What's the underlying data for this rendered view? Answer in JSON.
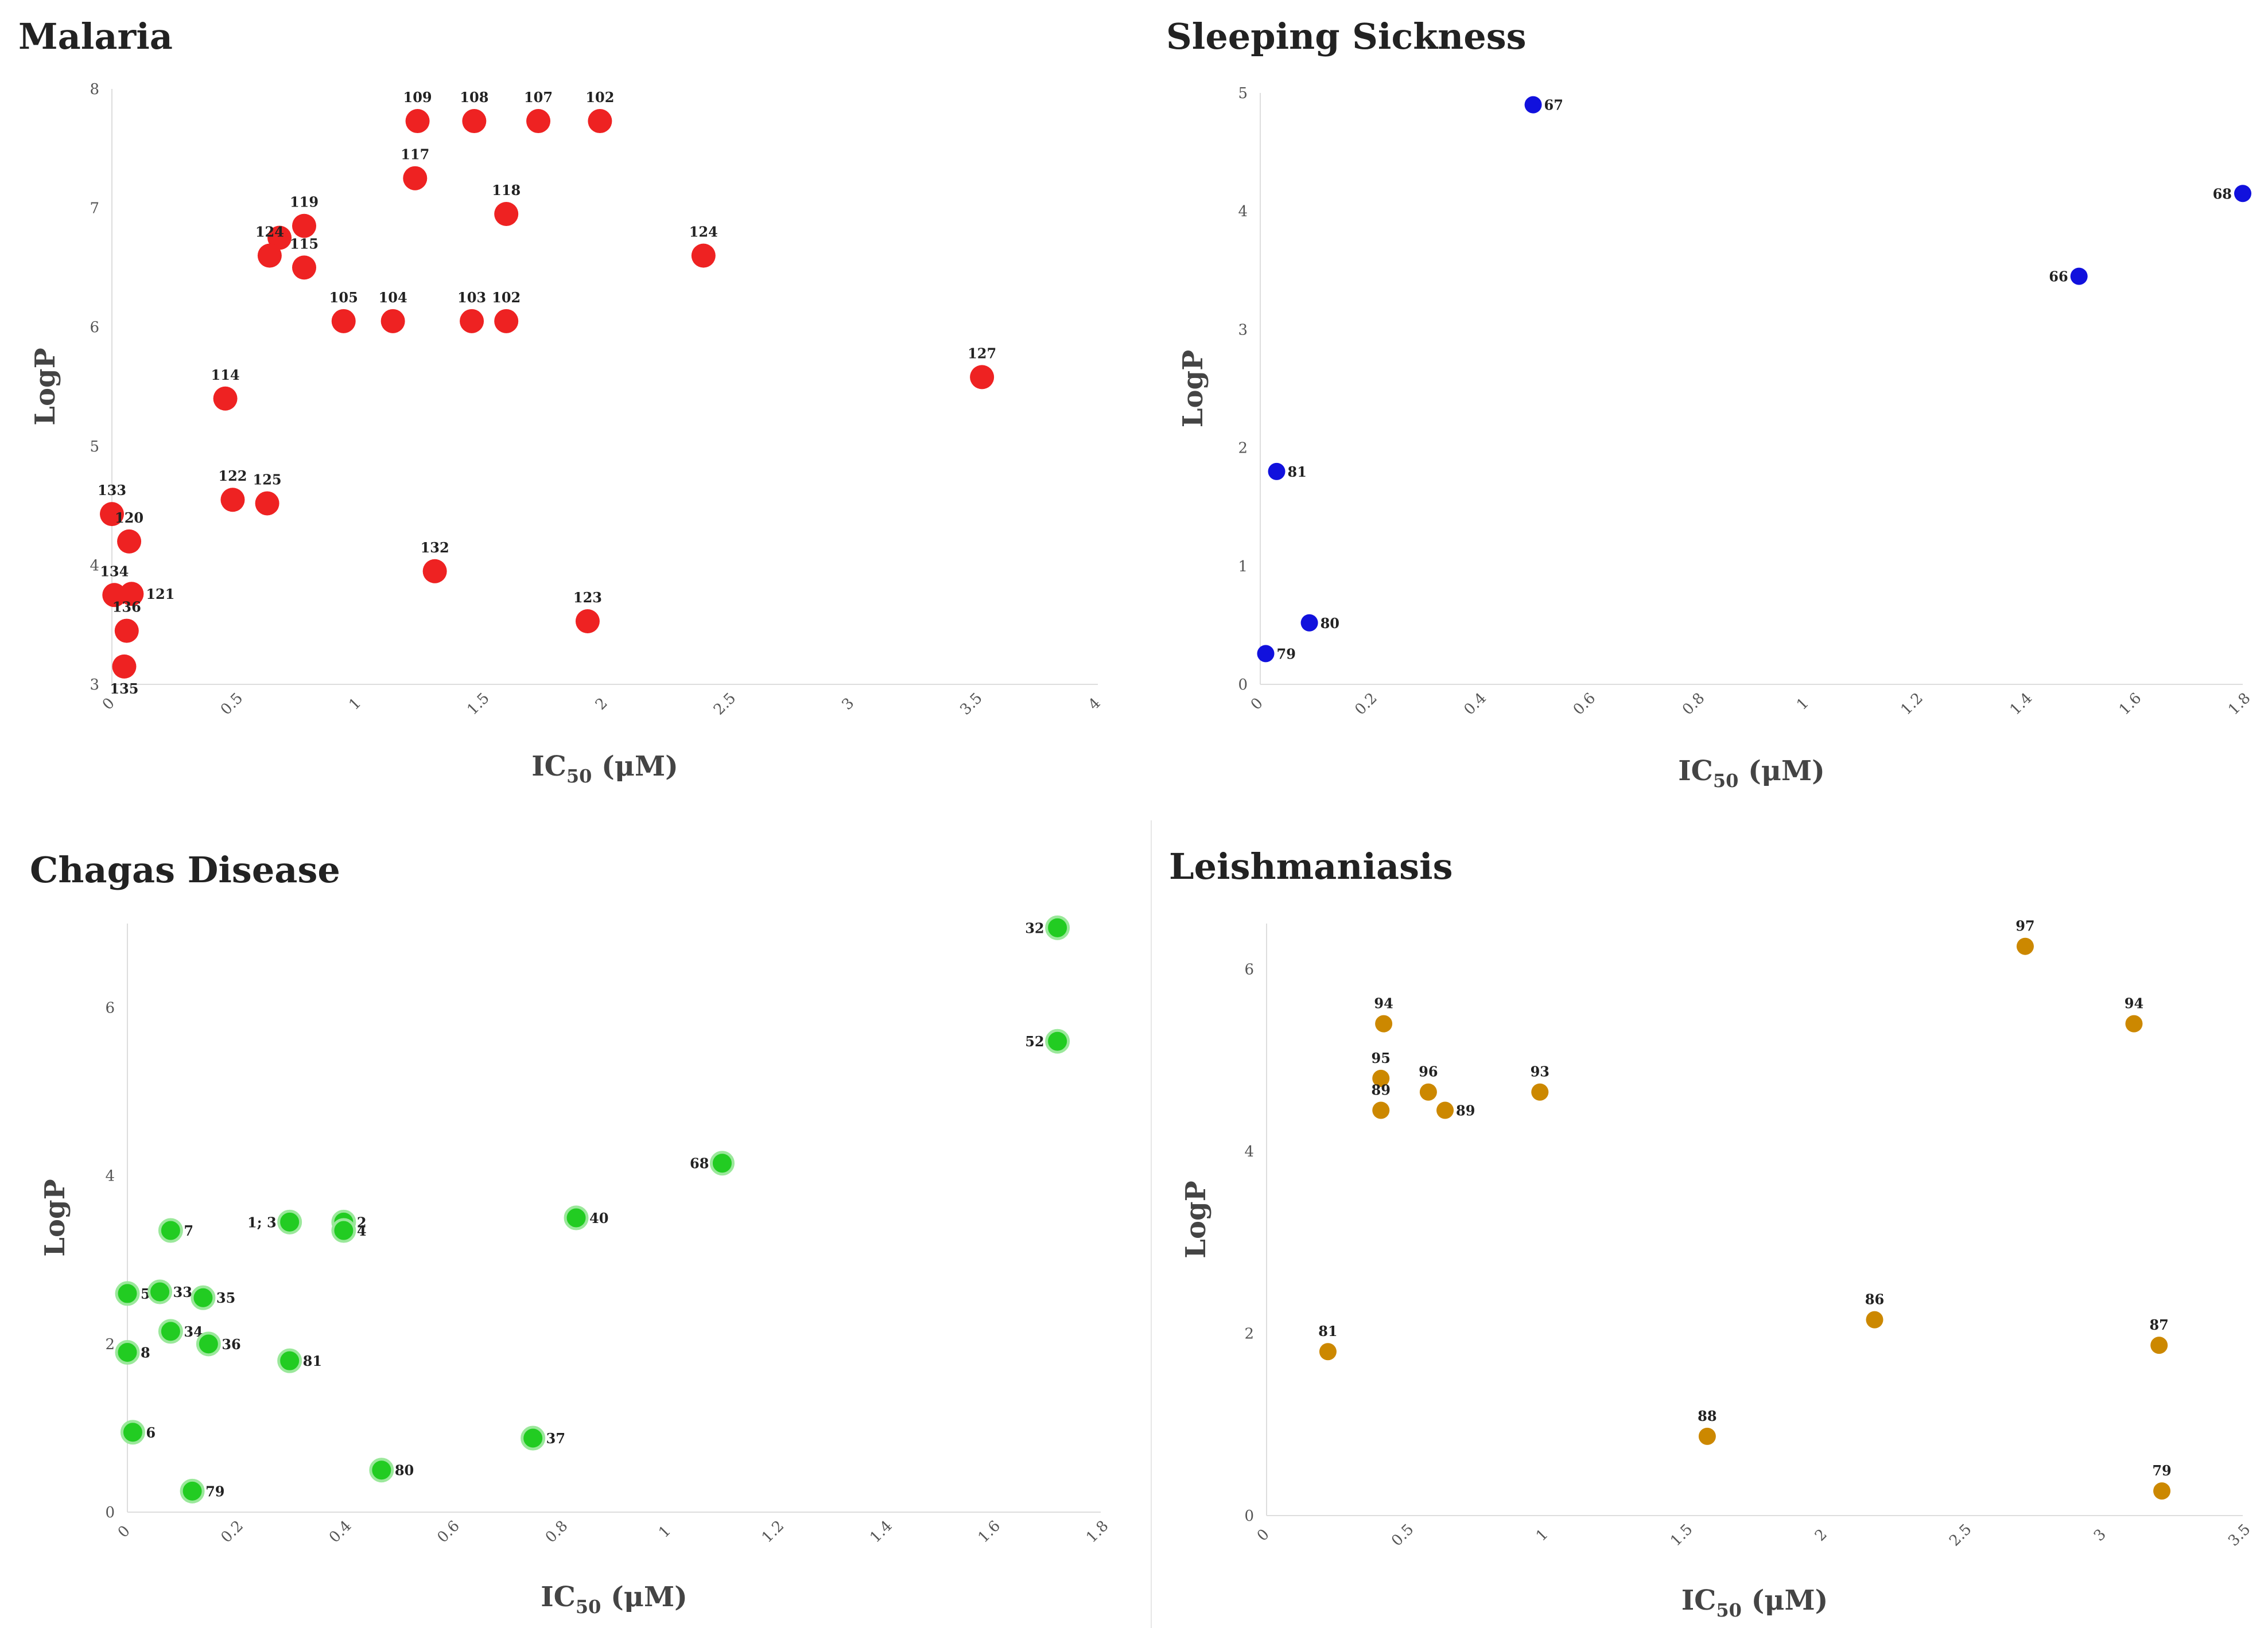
{
  "chart_data": [
    {
      "type": "scatter",
      "title": "Malaria",
      "xlabel_prefix": "IC",
      "xlabel_sub": "50",
      "xlabel_suffix": " (μM)",
      "ylabel": "LogP",
      "xlim": [
        0,
        4
      ],
      "ylim": [
        3,
        8
      ],
      "xticks": [
        0,
        0.5,
        1,
        1.5,
        2,
        2.5,
        3,
        3.5,
        4
      ],
      "xtick_labels": [
        "0",
        "0.5",
        "1",
        "1.5",
        "2",
        "2.5",
        "3",
        "3.5",
        "4"
      ],
      "yticks": [
        3,
        4,
        5,
        6,
        7,
        8
      ],
      "ytick_labels": [
        "3",
        "4",
        "5",
        "6",
        "7",
        "8"
      ],
      "color": "#ee2222",
      "grid": false,
      "points": [
        {
          "x": 1.24,
          "y": 7.73,
          "label": "109",
          "pos": "above"
        },
        {
          "x": 1.47,
          "y": 7.73,
          "label": "108",
          "pos": "above"
        },
        {
          "x": 1.73,
          "y": 7.73,
          "label": "107",
          "pos": "above"
        },
        {
          "x": 1.98,
          "y": 7.73,
          "label": "102",
          "pos": "above"
        },
        {
          "x": 1.23,
          "y": 7.25,
          "label": "117",
          "pos": "above"
        },
        {
          "x": 1.6,
          "y": 6.95,
          "label": "118",
          "pos": "above"
        },
        {
          "x": 0.78,
          "y": 6.85,
          "label": "119",
          "pos": "above"
        },
        {
          "x": 0.68,
          "y": 6.75,
          "label": "",
          "pos": "above"
        },
        {
          "x": 0.64,
          "y": 6.6,
          "label": "124",
          "pos": "above"
        },
        {
          "x": 0.78,
          "y": 6.5,
          "label": "115",
          "pos": "above"
        },
        {
          "x": 2.4,
          "y": 6.6,
          "label": "124",
          "pos": "above"
        },
        {
          "x": 0.94,
          "y": 6.05,
          "label": "105",
          "pos": "above"
        },
        {
          "x": 1.14,
          "y": 6.05,
          "label": "104",
          "pos": "above"
        },
        {
          "x": 1.46,
          "y": 6.05,
          "label": "103",
          "pos": "above"
        },
        {
          "x": 1.6,
          "y": 6.05,
          "label": "102",
          "pos": "above"
        },
        {
          "x": 3.53,
          "y": 5.58,
          "label": "127",
          "pos": "above"
        },
        {
          "x": 0.46,
          "y": 5.4,
          "label": "114",
          "pos": "above"
        },
        {
          "x": 0.49,
          "y": 4.55,
          "label": "122",
          "pos": "above"
        },
        {
          "x": 0.63,
          "y": 4.52,
          "label": "125",
          "pos": "above"
        },
        {
          "x": 0.0,
          "y": 4.43,
          "label": "133",
          "pos": "above"
        },
        {
          "x": 0.07,
          "y": 4.2,
          "label": "120",
          "pos": "above"
        },
        {
          "x": 1.31,
          "y": 3.95,
          "label": "132",
          "pos": "above"
        },
        {
          "x": 0.01,
          "y": 3.75,
          "label": "134",
          "pos": "above"
        },
        {
          "x": 0.08,
          "y": 3.76,
          "label": "121",
          "pos": "right"
        },
        {
          "x": 1.93,
          "y": 3.53,
          "label": "123",
          "pos": "above"
        },
        {
          "x": 0.06,
          "y": 3.45,
          "label": "136",
          "pos": "above"
        },
        {
          "x": 0.05,
          "y": 3.15,
          "label": "135",
          "pos": "below"
        }
      ]
    },
    {
      "type": "scatter",
      "title": "Sleeping Sickness",
      "xlabel_prefix": "IC",
      "xlabel_sub": "50",
      "xlabel_suffix": " (μM)",
      "ylabel": "LogP",
      "xlim": [
        0,
        1.8
      ],
      "ylim": [
        0,
        5
      ],
      "xticks": [
        0,
        0.2,
        0.4,
        0.6,
        0.8,
        1,
        1.2,
        1.4,
        1.6,
        1.8
      ],
      "xtick_labels": [
        "0",
        "0.2",
        "0.4",
        "0.6",
        "0.8",
        "1",
        "1.2",
        "1.4",
        "1.6",
        "1.8"
      ],
      "yticks": [
        0,
        1,
        2,
        3,
        4,
        5
      ],
      "ytick_labels": [
        "0",
        "1",
        "2",
        "3",
        "4",
        "5"
      ],
      "color": "#1111dd",
      "grid": false,
      "points": [
        {
          "x": 0.5,
          "y": 4.9,
          "label": "67",
          "pos": "right"
        },
        {
          "x": 1.8,
          "y": 4.15,
          "label": "68",
          "pos": "left"
        },
        {
          "x": 1.5,
          "y": 3.45,
          "label": "66",
          "pos": "left"
        },
        {
          "x": 0.03,
          "y": 1.8,
          "label": "81",
          "pos": "right"
        },
        {
          "x": 0.09,
          "y": 0.52,
          "label": "80",
          "pos": "right"
        },
        {
          "x": 0.01,
          "y": 0.26,
          "label": "79",
          "pos": "right"
        }
      ]
    },
    {
      "type": "scatter",
      "title": "Chagas Disease",
      "xlabel_prefix": "IC",
      "xlabel_sub": "50",
      "xlabel_suffix": " (μM)",
      "ylabel": "LogP",
      "xlim": [
        0,
        1.8
      ],
      "ylim": [
        0,
        7
      ],
      "xticks": [
        0,
        0.2,
        0.4,
        0.6,
        0.8,
        1,
        1.2,
        1.4,
        1.6,
        1.8
      ],
      "xtick_labels": [
        "0",
        "0.2",
        "0.4",
        "0.6",
        "0.8",
        "1",
        "1.2",
        "1.4",
        "1.6",
        "1.8"
      ],
      "yticks": [
        0,
        2,
        4,
        6
      ],
      "ytick_labels": [
        "0",
        "2",
        "4",
        "6"
      ],
      "color": "#22cc22",
      "grid": false,
      "points": [
        {
          "x": 1.72,
          "y": 6.95,
          "label": "32",
          "pos": "left"
        },
        {
          "x": 1.72,
          "y": 5.6,
          "label": "52",
          "pos": "left"
        },
        {
          "x": 1.1,
          "y": 4.15,
          "label": "68",
          "pos": "left"
        },
        {
          "x": 0.83,
          "y": 3.5,
          "label": "40",
          "pos": "right"
        },
        {
          "x": 0.3,
          "y": 3.45,
          "label": "1; 3",
          "pos": "left"
        },
        {
          "x": 0.4,
          "y": 3.45,
          "label": "2",
          "pos": "right"
        },
        {
          "x": 0.4,
          "y": 3.35,
          "label": "4",
          "pos": "right"
        },
        {
          "x": 0.08,
          "y": 3.35,
          "label": "7",
          "pos": "right"
        },
        {
          "x": 0.0,
          "y": 2.6,
          "label": "5",
          "pos": "right"
        },
        {
          "x": 0.06,
          "y": 2.62,
          "label": "33",
          "pos": "right"
        },
        {
          "x": 0.14,
          "y": 2.55,
          "label": "35",
          "pos": "right"
        },
        {
          "x": 0.08,
          "y": 2.15,
          "label": "34",
          "pos": "right"
        },
        {
          "x": 0.15,
          "y": 2.0,
          "label": "36",
          "pos": "right"
        },
        {
          "x": 0.0,
          "y": 1.9,
          "label": "8",
          "pos": "right"
        },
        {
          "x": 0.3,
          "y": 1.8,
          "label": "81",
          "pos": "right"
        },
        {
          "x": 0.01,
          "y": 0.95,
          "label": "6",
          "pos": "right"
        },
        {
          "x": 0.75,
          "y": 0.88,
          "label": "37",
          "pos": "right"
        },
        {
          "x": 0.47,
          "y": 0.5,
          "label": "80",
          "pos": "right"
        },
        {
          "x": 0.12,
          "y": 0.25,
          "label": "79",
          "pos": "right"
        }
      ]
    },
    {
      "type": "scatter",
      "title": "Leishmaniasis",
      "xlabel_prefix": "IC",
      "xlabel_sub": "50",
      "xlabel_suffix": " (μM)",
      "ylabel": "LogP",
      "xlim": [
        0,
        3.5
      ],
      "ylim": [
        0,
        6.5
      ],
      "xticks": [
        0,
        0.5,
        1,
        1.5,
        2,
        2.5,
        3,
        3.5
      ],
      "xtick_labels": [
        "0",
        "0.5",
        "1",
        "1.5",
        "2",
        "2.5",
        "3",
        "3.5"
      ],
      "yticks": [
        0,
        2,
        4,
        6
      ],
      "ytick_labels": [
        "0",
        "2",
        "4",
        "6"
      ],
      "color": "#cc8800",
      "grid": false,
      "points": [
        {
          "x": 2.72,
          "y": 6.25,
          "label": "97",
          "pos": "above"
        },
        {
          "x": 0.42,
          "y": 5.4,
          "label": "94",
          "pos": "above"
        },
        {
          "x": 3.11,
          "y": 5.4,
          "label": "94",
          "pos": "above"
        },
        {
          "x": 0.41,
          "y": 4.8,
          "label": "95",
          "pos": "above"
        },
        {
          "x": 0.58,
          "y": 4.65,
          "label": "96",
          "pos": "above"
        },
        {
          "x": 0.98,
          "y": 4.65,
          "label": "93",
          "pos": "above"
        },
        {
          "x": 0.41,
          "y": 4.45,
          "label": "89",
          "pos": "above"
        },
        {
          "x": 0.64,
          "y": 4.45,
          "label": "89",
          "pos": "right"
        },
        {
          "x": 2.18,
          "y": 2.15,
          "label": "86",
          "pos": "above"
        },
        {
          "x": 3.2,
          "y": 1.87,
          "label": "87",
          "pos": "above"
        },
        {
          "x": 0.22,
          "y": 1.8,
          "label": "81",
          "pos": "above"
        },
        {
          "x": 1.58,
          "y": 0.87,
          "label": "88",
          "pos": "above"
        },
        {
          "x": 3.21,
          "y": 0.27,
          "label": "79",
          "pos": "above"
        }
      ]
    }
  ]
}
